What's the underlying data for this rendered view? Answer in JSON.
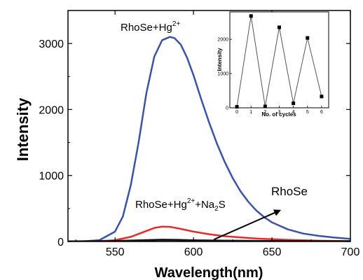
{
  "chart_data": [
    {
      "type": "line",
      "xlabel": "Wavelength(nm)",
      "ylabel": "Intensity",
      "xlim": [
        520,
        700
      ],
      "ylim": [
        0,
        3500
      ],
      "x_ticks": [
        "550",
        "600",
        "650",
        "700"
      ],
      "y_ticks": [
        "0",
        "1000",
        "2000",
        "3000"
      ],
      "x_tick_values": [
        550,
        600,
        650,
        700
      ],
      "y_tick_values": [
        0,
        1000,
        2000,
        3000
      ],
      "colors": {
        "blue": "#3a53a4",
        "red": "#e52b2b",
        "black": "#111111"
      },
      "series": [
        {
          "color": "#3a53a4",
          "x": [
            520,
            530,
            540,
            550,
            555,
            560,
            565,
            570,
            575,
            580,
            585,
            588,
            592,
            596,
            600,
            605,
            610,
            615,
            620,
            625,
            630,
            635,
            640,
            645,
            650,
            660,
            670,
            680,
            690,
            700
          ],
          "y": [
            0,
            3,
            20,
            150,
            380,
            850,
            1500,
            2250,
            2800,
            3050,
            3100,
            3080,
            2980,
            2780,
            2520,
            2150,
            1800,
            1480,
            1200,
            960,
            760,
            600,
            470,
            370,
            290,
            185,
            120,
            85,
            60,
            40
          ]
        },
        {
          "color": "#e52b2b",
          "x": [
            520,
            540,
            550,
            560,
            570,
            575,
            580,
            585,
            590,
            600,
            610,
            620,
            640,
            660,
            680,
            700
          ],
          "y": [
            0,
            5,
            20,
            70,
            160,
            205,
            225,
            222,
            200,
            150,
            110,
            80,
            45,
            25,
            12,
            5
          ]
        },
        {
          "color": "#111111",
          "x": [
            520,
            550,
            570,
            580,
            590,
            600,
            620,
            650,
            700
          ],
          "y": [
            0,
            5,
            18,
            25,
            22,
            16,
            10,
            5,
            2
          ]
        }
      ],
      "annotations": {
        "blue_label": {
          "base": "RhoSe+Hg",
          "sup": "2+"
        },
        "red_label": {
          "base1": "RhoSe+Hg",
          "sup": "2+",
          "base2": "+Na",
          "sub": "2",
          "base3": "S"
        },
        "black_label": {
          "text": "RhoSe"
        }
      },
      "arrow": {
        "from": [
          613,
          30
        ],
        "to": [
          655,
          470
        ]
      }
    },
    {
      "type": "scatter",
      "xlabel": "No. of cycles",
      "ylabel": "Intensity",
      "xlim": [
        -0.5,
        6.5
      ],
      "ylim": [
        0,
        2800
      ],
      "x_ticks": [
        "0",
        "1",
        "2",
        "3",
        "4",
        "5",
        "6"
      ],
      "y_ticks": [
        "0",
        "1000",
        "2000"
      ],
      "x_tick_values": [
        0,
        1,
        2,
        3,
        4,
        5,
        6
      ],
      "y_tick_values": [
        0,
        1000,
        2000
      ],
      "x": [
        0,
        1,
        2,
        3,
        4,
        5,
        6
      ],
      "y": [
        30,
        2680,
        40,
        2350,
        130,
        2040,
        330
      ],
      "connected": true
    }
  ]
}
